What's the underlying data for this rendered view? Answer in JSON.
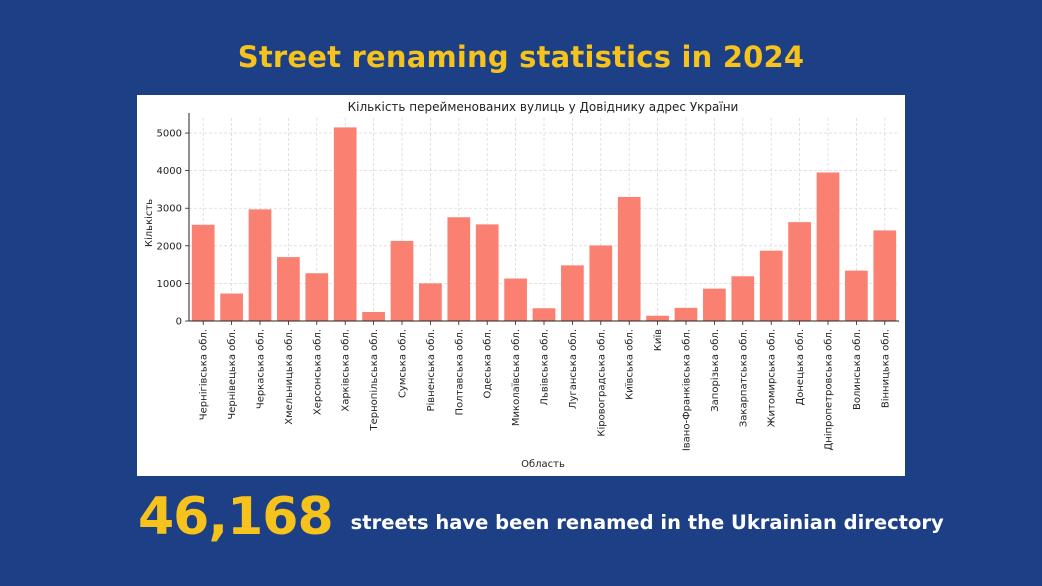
{
  "headline": "Street renaming statistics in 2024",
  "stat": {
    "number": "46,168",
    "text": "streets have been renamed in the Ukrainian directory"
  },
  "colors": {
    "background": "#1c3f86",
    "accent": "#f6c21c",
    "bar": "#fa8072"
  },
  "chart_data": {
    "type": "bar",
    "title": "Кількість перейменованих вулиць у Довіднику адрес України",
    "xlabel": "Область",
    "ylabel": "Кількість",
    "ylim": [
      0,
      5400
    ],
    "yticks": [
      0,
      1000,
      2000,
      3000,
      4000,
      5000
    ],
    "grid": true,
    "categories": [
      "Чернігівська обл.",
      "Чернівецька обл.",
      "Черкаська обл.",
      "Хмельницька обл.",
      "Херсонська обл.",
      "Харківська обл.",
      "Тернопільська обл.",
      "Сумська обл.",
      "Рівненська обл.",
      "Полтавська обл.",
      "Одеська обл.",
      "Миколаївська обл.",
      "Львівська обл.",
      "Луганська обл.",
      "Кіровоградська обл.",
      "Київська обл.",
      "Київ",
      "Івано-Франківська обл.",
      "Запорізька обл.",
      "Закарпатська обл.",
      "Житомирська обл.",
      "Донецька обл.",
      "Дніпропетровська обл.",
      "Волинська обл.",
      "Вінницька обл."
    ],
    "values": [
      2560,
      730,
      2970,
      1700,
      1270,
      5150,
      240,
      2130,
      1000,
      2760,
      2570,
      1130,
      340,
      1480,
      2010,
      3300,
      140,
      350,
      860,
      1190,
      1870,
      2630,
      3950,
      1340,
      2410
    ]
  }
}
